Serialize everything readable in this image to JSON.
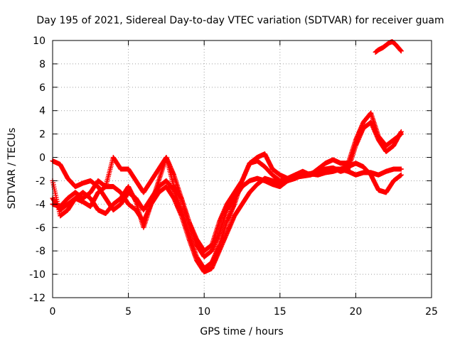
{
  "chart_data": {
    "type": "scatter",
    "title": "Day 195 of 2021, Sidereal Day-to-day VTEC variation (SDTVAR) for receiver guam",
    "xlabel": "GPS time / hours",
    "ylabel": "SDTVAR / TECUs",
    "xlim": [
      0,
      25
    ],
    "ylim": [
      -12,
      10
    ],
    "xticks": [
      "0",
      "5",
      "10",
      "15",
      "20",
      "25"
    ],
    "yticks": [
      "-12",
      "-10",
      "-8",
      "-6",
      "-4",
      "-2",
      "0",
      "2",
      "4",
      "6",
      "8",
      "10"
    ],
    "grid": true,
    "marker": "+",
    "series_color": "#ff0000",
    "series": [
      {
        "name": "trace-a",
        "x": [
          0,
          0.5,
          1.0,
          1.5,
          2.0,
          2.5,
          3.0,
          3.5,
          4.0,
          4.5,
          5.0,
          5.5,
          6.0,
          6.5,
          7.0,
          7.5,
          8.0,
          8.5,
          9.0,
          9.5,
          10.0,
          10.5,
          11.0,
          11.5,
          12.0,
          12.5,
          13.0,
          13.5,
          14.0,
          14.5,
          15.0,
          15.5,
          16.0,
          16.5,
          17.0,
          17.5,
          18.0,
          18.5,
          19.0,
          19.5,
          20.0,
          20.5,
          21.0,
          21.5,
          22.0,
          22.5,
          23.0
        ],
        "y": [
          -3.5,
          -4.5,
          -4.0,
          -3.5,
          -3.8,
          -4.2,
          -3.0,
          -2.5,
          -2.5,
          -3.0,
          -4.0,
          -4.5,
          -5.5,
          -4.0,
          -3.0,
          -2.5,
          -3.5,
          -5.0,
          -7.0,
          -8.8,
          -9.8,
          -9.5,
          -8.0,
          -6.5,
          -5.0,
          -4.0,
          -3.0,
          -2.3,
          -1.8,
          -2.0,
          -2.2,
          -2.0,
          -1.7,
          -1.6,
          -1.5,
          -1.3,
          -1.2,
          -1.0,
          -1.0,
          -1.2,
          -1.5,
          -1.3,
          -1.3,
          -1.5,
          -1.2,
          -1.0,
          -1.0
        ]
      },
      {
        "name": "trace-b",
        "x": [
          0,
          0.5,
          1.0,
          1.5,
          2.0,
          2.5,
          3.0,
          3.5,
          4.0,
          4.5,
          5.0,
          5.5,
          6.0,
          6.5,
          7.0,
          7.5,
          8.0,
          8.5,
          9.0,
          9.5,
          10.0,
          10.5,
          11.0,
          11.5,
          12.0,
          12.5,
          13.0,
          13.5,
          14.0,
          14.5,
          15.0,
          15.5,
          16.0,
          16.5,
          17.0,
          17.5,
          18.0,
          18.5,
          19.0,
          19.5,
          20.0,
          20.5,
          21.0,
          21.5,
          22.0,
          22.5,
          23.0
        ],
        "y": [
          -0.3,
          -0.6,
          -1.8,
          -2.5,
          -2.2,
          -2.0,
          -2.5,
          -3.5,
          -4.5,
          -4.0,
          -3.0,
          -3.5,
          -4.5,
          -3.5,
          -2.5,
          -2.0,
          -2.8,
          -4.5,
          -6.5,
          -8.5,
          -9.5,
          -9.0,
          -7.5,
          -5.5,
          -4.0,
          -2.0,
          -0.5,
          0.0,
          0.3,
          -1.0,
          -1.5,
          -1.8,
          -1.6,
          -1.5,
          -1.4,
          -1.2,
          -1.0,
          -0.9,
          -1.2,
          -1.0,
          1.0,
          2.5,
          3.0,
          1.5,
          0.5,
          1.0,
          2.2
        ]
      },
      {
        "name": "trace-c",
        "x": [
          0,
          0.5,
          1.0,
          1.5,
          2.0,
          2.5,
          3.0,
          3.5,
          4.0,
          4.5,
          5.0,
          5.5,
          6.0,
          6.5,
          7.0,
          7.5,
          8.0,
          8.5,
          9.0,
          9.5,
          10.0,
          10.5,
          11.0,
          11.5,
          12.0,
          12.5,
          13.0,
          13.5,
          14.0,
          14.5,
          15.0,
          15.5,
          16.0,
          16.5,
          17.0,
          17.5,
          18.0,
          18.5,
          19.0,
          19.5,
          20.0,
          20.5,
          21.0,
          21.5,
          22.0,
          22.5,
          23.0
        ],
        "y": [
          -2.0,
          -5.0,
          -4.5,
          -3.5,
          -3.0,
          -3.5,
          -4.5,
          -4.8,
          -4.0,
          -3.5,
          -2.5,
          -3.8,
          -6.0,
          -4.0,
          -2.0,
          0.0,
          -1.5,
          -3.5,
          -5.5,
          -7.5,
          -8.5,
          -8.0,
          -6.5,
          -4.5,
          -3.5,
          -2.5,
          -2.0,
          -1.8,
          -2.0,
          -2.3,
          -2.5,
          -2.0,
          -1.8,
          -1.5,
          -1.4,
          -1.5,
          -1.3,
          -1.2,
          -1.0,
          -0.8,
          -0.5,
          -0.8,
          -1.5,
          -2.8,
          -3.0,
          -2.0,
          -1.5
        ]
      },
      {
        "name": "trace-d",
        "x": [
          0,
          0.5,
          1.0,
          1.5,
          2.0,
          2.5,
          3.0,
          3.5,
          4.0,
          4.5,
          5.0,
          5.5,
          6.0,
          6.5,
          7.0,
          7.5,
          8.0,
          8.5,
          9.0,
          9.5,
          10.0,
          10.5,
          11.0,
          11.5,
          12.0,
          12.5,
          13.0,
          13.5,
          14.0,
          14.5,
          15.0,
          15.5,
          16.0,
          16.5,
          17.0,
          17.5,
          18.0,
          18.5,
          19.0,
          19.5,
          20.0,
          20.5,
          21.0,
          21.5,
          22.0,
          22.5,
          23.0
        ],
        "y": [
          -4.0,
          -4.2,
          -3.5,
          -3.0,
          -3.5,
          -3.0,
          -2.0,
          -2.5,
          0.0,
          -1.0,
          -1.0,
          -2.0,
          -3.0,
          -2.0,
          -1.0,
          0.0,
          -2.5,
          -3.5,
          -5.5,
          -7.0,
          -8.0,
          -7.5,
          -5.5,
          -4.0,
          -3.0,
          -2.0,
          -0.5,
          -0.3,
          -0.8,
          -1.5,
          -2.0,
          -1.8,
          -1.5,
          -1.2,
          -1.5,
          -1.0,
          -0.5,
          -0.2,
          -0.5,
          -0.5,
          1.5,
          3.0,
          3.8,
          1.8,
          1.0,
          1.5,
          2.0
        ]
      },
      {
        "name": "trace-e",
        "x": [
          21.3,
          21.5,
          21.8,
          22.0,
          22.2,
          22.4,
          22.6,
          22.8,
          23.0
        ],
        "y": [
          9.0,
          9.2,
          9.4,
          9.6,
          9.8,
          9.9,
          9.7,
          9.4,
          9.1
        ]
      }
    ]
  }
}
